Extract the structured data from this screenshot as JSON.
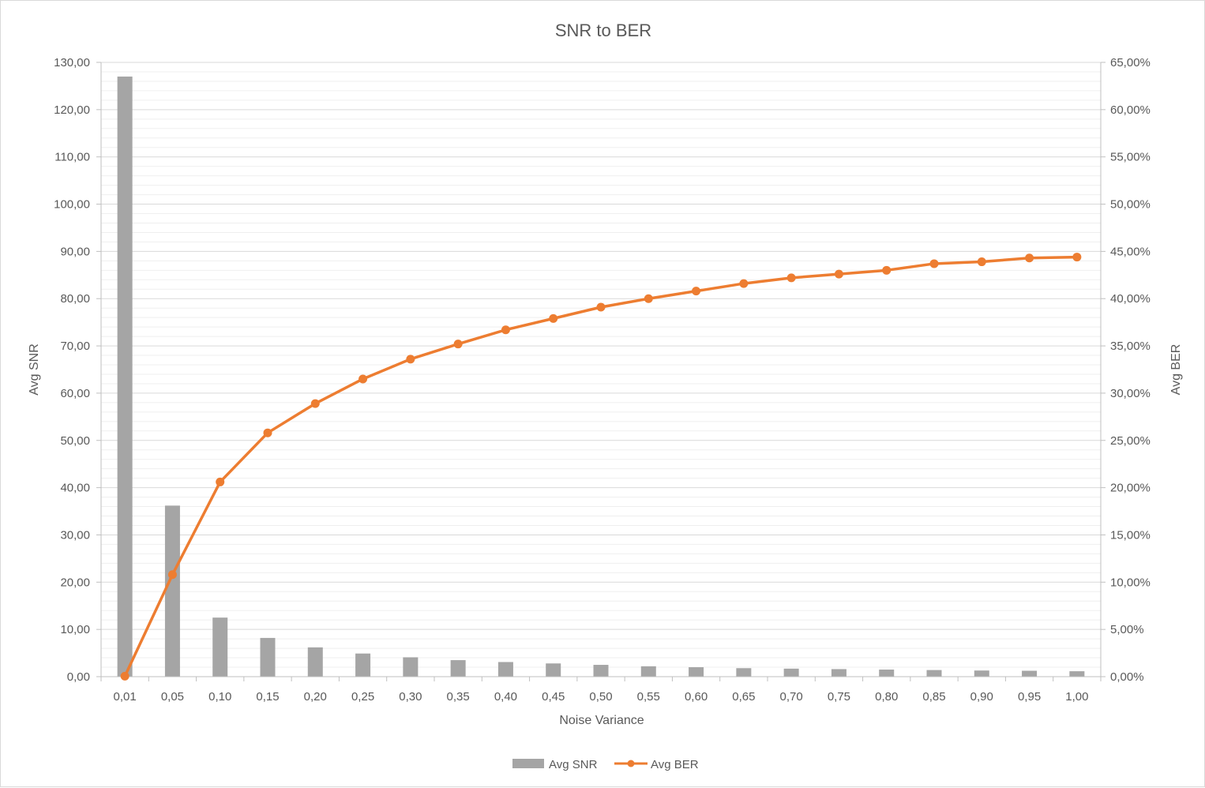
{
  "chart_data": {
    "type": "bar",
    "title": "SNR to BER",
    "xlabel": "Noise Variance",
    "ylabel": "Avg SNR",
    "y2label": "Avg BER",
    "categories": [
      "0,01",
      "0,05",
      "0,10",
      "0,15",
      "0,20",
      "0,25",
      "0,30",
      "0,35",
      "0,40",
      "0,45",
      "0,50",
      "0,55",
      "0,60",
      "0,65",
      "0,70",
      "0,75",
      "0,80",
      "0,85",
      "0,90",
      "0,95",
      "1,00"
    ],
    "ylim": [
      0,
      130
    ],
    "y2lim": [
      0,
      65
    ],
    "y_ticks": [
      "0,00",
      "10,00",
      "20,00",
      "30,00",
      "40,00",
      "50,00",
      "60,00",
      "70,00",
      "80,00",
      "90,00",
      "100,00",
      "110,00",
      "120,00",
      "130,00"
    ],
    "y2_ticks": [
      "0,00%",
      "5,00%",
      "10,00%",
      "15,00%",
      "20,00%",
      "25,00%",
      "30,00%",
      "35,00%",
      "40,00%",
      "45,00%",
      "50,00%",
      "55,00%",
      "60,00%",
      "65,00%"
    ],
    "grid": true,
    "legend_position": "bottom",
    "series": [
      {
        "name": "Avg SNR",
        "type": "bar",
        "axis": "left",
        "color": "#a5a5a5",
        "values": [
          127,
          36.2,
          12.5,
          8.2,
          6.2,
          4.9,
          4.1,
          3.5,
          3.1,
          2.8,
          2.5,
          2.2,
          2.0,
          1.8,
          1.7,
          1.6,
          1.5,
          1.4,
          1.3,
          1.25,
          1.15
        ]
      },
      {
        "name": "Avg BER",
        "type": "line",
        "axis": "right",
        "unit": "%",
        "color": "#ed7d31",
        "values": [
          0.05,
          10.8,
          20.6,
          25.8,
          28.9,
          31.5,
          33.6,
          35.2,
          36.7,
          37.9,
          39.1,
          40.0,
          40.8,
          41.6,
          42.2,
          42.6,
          43.0,
          43.7,
          43.9,
          44.3,
          44.4
        ]
      }
    ]
  }
}
